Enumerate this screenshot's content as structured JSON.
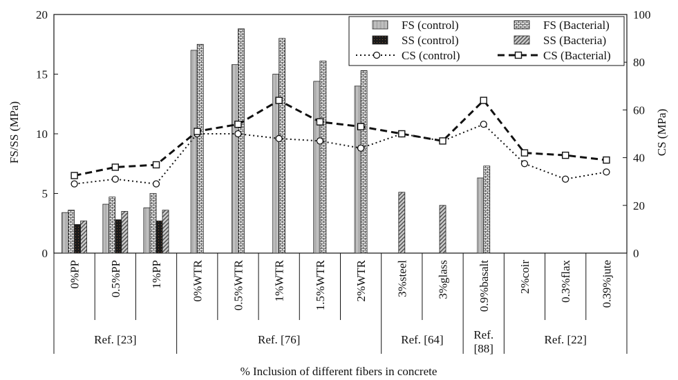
{
  "chart_data": {
    "type": "bar",
    "xlabel": "% Inclusion of different fibers in concrete",
    "ylabel_left": "FS/SS (MPa)",
    "ylabel_right": "CS (MPa)",
    "ylim_left": [
      0,
      20
    ],
    "ylim_right": [
      0,
      100
    ],
    "yticks_left": [
      "0",
      "5",
      "10",
      "15",
      "20"
    ],
    "yticks_right": [
      "0",
      "20",
      "40",
      "60",
      "80",
      "100"
    ],
    "categories": [
      "0%PP",
      "0.5%PP",
      "1%PP",
      "0%WTR",
      "0.5%WTR",
      "1%WTR",
      "1.5%WTR",
      "2%WTR",
      "3%steel",
      "3%glass",
      "0.9%basalt",
      "2%coir",
      "0.3%flax",
      "0.39%jute"
    ],
    "groups": [
      {
        "label": "Ref. [23]",
        "start": 0,
        "end": 2
      },
      {
        "label": "Ref. [76]",
        "start": 3,
        "end": 7
      },
      {
        "label": "Ref. [64]",
        "start": 8,
        "end": 9
      },
      {
        "label": "Ref. [88]",
        "start": 10,
        "end": 10
      },
      {
        "label": "Ref. [22]",
        "start": 11,
        "end": 13
      }
    ],
    "series": [
      {
        "name": "FS (control)",
        "kind": "bar",
        "axis": "left",
        "values": [
          3.4,
          4.1,
          3.8,
          17.0,
          15.8,
          15.0,
          14.4,
          14.0,
          null,
          null,
          6.3,
          null,
          null,
          null
        ]
      },
      {
        "name": "FS (Bacterial)",
        "kind": "bar",
        "axis": "left",
        "values": [
          3.6,
          4.7,
          5.0,
          17.5,
          18.8,
          18.0,
          16.1,
          15.3,
          null,
          null,
          7.3,
          null,
          null,
          null
        ]
      },
      {
        "name": "SS (control)",
        "kind": "bar",
        "axis": "left",
        "values": [
          2.4,
          2.8,
          2.7,
          null,
          null,
          null,
          null,
          null,
          null,
          null,
          null,
          null,
          null,
          null
        ]
      },
      {
        "name": "SS (Bacteria)",
        "kind": "bar",
        "axis": "left",
        "values": [
          2.7,
          3.5,
          3.6,
          null,
          null,
          null,
          null,
          null,
          5.1,
          4.0,
          null,
          null,
          null,
          null
        ]
      },
      {
        "name": "CS (control)",
        "kind": "line",
        "axis": "right",
        "values": [
          29,
          31,
          29,
          50,
          50,
          48,
          47,
          44,
          50,
          47,
          54,
          37.5,
          31,
          34
        ]
      },
      {
        "name": "CS (Bacterial)",
        "kind": "line",
        "axis": "right",
        "values": [
          32.5,
          36,
          37,
          51,
          54,
          64,
          55,
          53,
          50,
          47,
          64,
          42,
          41,
          39
        ]
      }
    ],
    "legend_position": "top-right",
    "grid": false
  }
}
